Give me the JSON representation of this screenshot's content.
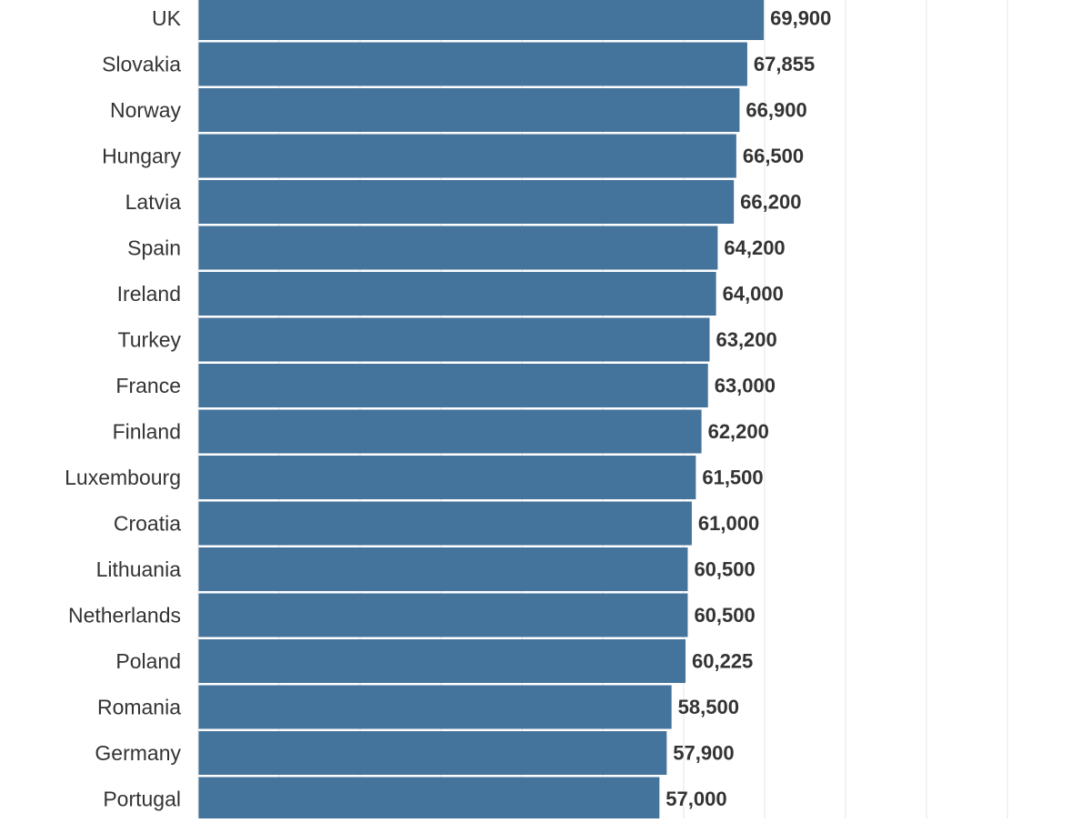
{
  "colors": {
    "bar": "#44739c",
    "grid": "#e6e6e6",
    "label": "#333333",
    "background": "#ffffff"
  },
  "chart_data": {
    "type": "bar",
    "orientation": "horizontal",
    "title": "",
    "xlabel": "",
    "ylabel": "",
    "grid": true,
    "xlim": [
      0,
      100000
    ],
    "categories": [
      "UK",
      "Slovakia",
      "Norway",
      "Hungary",
      "Latvia",
      "Spain",
      "Ireland",
      "Turkey",
      "France",
      "Finland",
      "Luxembourg",
      "Croatia",
      "Lithuania",
      "Netherlands",
      "Poland",
      "Romania",
      "Germany",
      "Portugal"
    ],
    "values": [
      69900,
      67855,
      66900,
      66500,
      66200,
      64200,
      64000,
      63200,
      63000,
      62200,
      61500,
      61000,
      60500,
      60500,
      60225,
      58500,
      57900,
      57000
    ],
    "value_labels": [
      "69,900",
      "67,855",
      "66,900",
      "66,500",
      "66,200",
      "64,200",
      "64,000",
      "63,200",
      "63,000",
      "62,200",
      "61,500",
      "61,000",
      "60,500",
      "60,500",
      "60,225",
      "58,500",
      "57,900",
      "57,000"
    ]
  }
}
